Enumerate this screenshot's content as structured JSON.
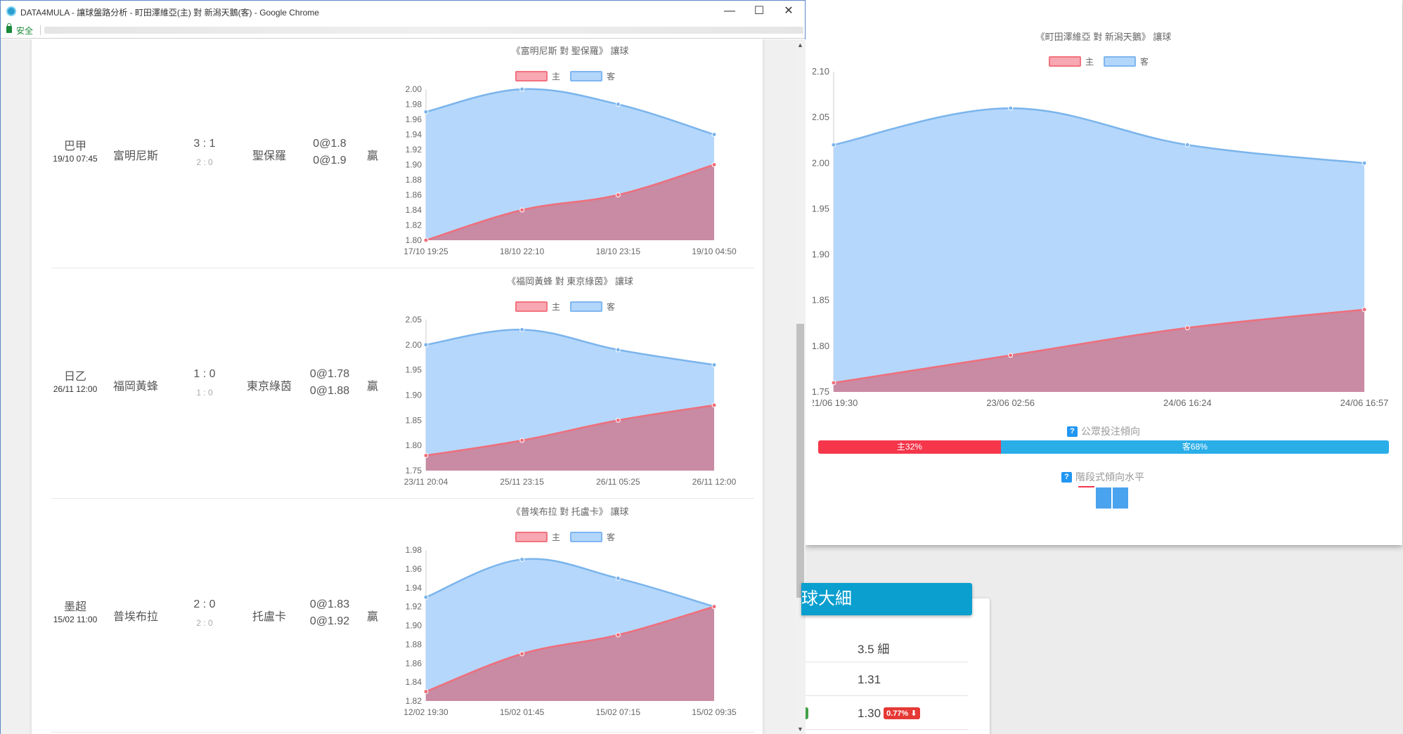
{
  "window": {
    "title": "DATA4MULA - 讓球盤路分析 - 町田澤維亞(主) 對 新潟天鵝(客) - Google Chrome",
    "secure_label": "安全",
    "minimize_glyph": "—",
    "maximize_glyph": "☐",
    "close_glyph": "✕"
  },
  "legend": {
    "home": "主",
    "away": "客"
  },
  "colors": {
    "home_line": "#ee6f7c",
    "home_fill": "#c98aa3",
    "away_line": "#7ab4ec",
    "away_fill": "#b5d7fb"
  },
  "matches": [
    {
      "league": "巴甲",
      "time": "19/10 07:45",
      "home": "富明尼斯",
      "score": "3 : 1",
      "half": "2 : 0",
      "away": "聖保羅",
      "odds_home": "0@1.8",
      "odds_away": "0@1.9",
      "result": "贏",
      "chart_title": "《富明尼斯 對 聖保羅》 讓球"
    },
    {
      "league": "日乙",
      "time": "26/11 12:00",
      "home": "福岡黃蜂",
      "score": "1 : 0",
      "half": "1 : 0",
      "away": "東京綠茵",
      "odds_home": "0@1.78",
      "odds_away": "0@1.88",
      "result": "贏",
      "chart_title": "《福岡黃蜂 對 東京綠茵》 讓球"
    },
    {
      "league": "墨超",
      "time": "15/02 11:00",
      "home": "普埃布拉",
      "score": "2 : 0",
      "half": "2 : 0",
      "away": "托盧卡",
      "odds_home": "0@1.83",
      "odds_away": "0@1.92",
      "result": "贏",
      "chart_title": "《普埃布拉 對 托盧卡》 讓球"
    }
  ],
  "chart_data": [
    {
      "type": "area",
      "title": "《富明尼斯 對 聖保羅》 讓球",
      "x": [
        "17/10 19:25",
        "18/10 22:10",
        "18/10 23:15",
        "19/10 04:50"
      ],
      "ylim": [
        1.8,
        2.0
      ],
      "yticks": [
        "2.00",
        "1.98",
        "1.96",
        "1.94",
        "1.92",
        "1.90",
        "1.88",
        "1.86",
        "1.84",
        "1.82",
        "1.80"
      ],
      "series": [
        {
          "name": "主",
          "values": [
            1.8,
            1.84,
            1.86,
            1.9
          ]
        },
        {
          "name": "客",
          "values": [
            1.97,
            2.0,
            1.98,
            1.94
          ]
        }
      ]
    },
    {
      "type": "area",
      "title": "《福岡黃蜂 對 東京綠茵》 讓球",
      "x": [
        "23/11 20:04",
        "25/11 23:15",
        "26/11 05:25",
        "26/11 12:00"
      ],
      "ylim": [
        1.75,
        2.05
      ],
      "yticks": [
        "2.05",
        "2.00",
        "1.95",
        "1.90",
        "1.85",
        "1.80",
        "1.75"
      ],
      "series": [
        {
          "name": "主",
          "values": [
            1.78,
            1.81,
            1.85,
            1.88
          ]
        },
        {
          "name": "客",
          "values": [
            2.0,
            2.03,
            1.99,
            1.96
          ]
        }
      ]
    },
    {
      "type": "area",
      "title": "《普埃布拉 對 托盧卡》 讓球",
      "x": [
        "12/02 19:30",
        "15/02 01:45",
        "15/02 07:15",
        "15/02 09:35"
      ],
      "ylim": [
        1.82,
        1.98
      ],
      "yticks": [
        "1.98",
        "1.96",
        "1.94",
        "1.92",
        "1.90",
        "1.88",
        "1.86",
        "1.84",
        "1.82"
      ],
      "series": [
        {
          "name": "主",
          "values": [
            1.83,
            1.87,
            1.89,
            1.92
          ]
        },
        {
          "name": "客",
          "values": [
            1.93,
            1.97,
            1.95,
            1.92
          ]
        }
      ]
    },
    {
      "type": "area",
      "title": "《町田澤維亞 對 新潟天鵝》 讓球",
      "x": [
        "21/06 19:30",
        "23/06 02:56",
        "24/06 16:24",
        "24/06 16:57"
      ],
      "ylim": [
        1.75,
        2.1
      ],
      "yticks": [
        "2.10",
        "2.05",
        "2.00",
        "1.95",
        "1.90",
        "1.85",
        "1.80",
        "1.75"
      ],
      "series": [
        {
          "name": "主",
          "values": [
            1.76,
            1.79,
            1.82,
            1.84
          ]
        },
        {
          "name": "客",
          "values": [
            2.02,
            2.06,
            2.02,
            2.0
          ]
        }
      ]
    }
  ],
  "public": {
    "label": "公眾投注傾向",
    "home_text": "主32%",
    "away_text": "客68%",
    "home_pct": 32,
    "away_pct": 68,
    "help_glyph": "?"
  },
  "stage": {
    "label": "階段式傾向水平"
  },
  "background": {
    "header": "球大細",
    "rows": [
      {
        "value": "3.5 細"
      },
      {
        "value": "1.31"
      },
      {
        "value": "1.30",
        "badge": "0.77%"
      }
    ]
  }
}
